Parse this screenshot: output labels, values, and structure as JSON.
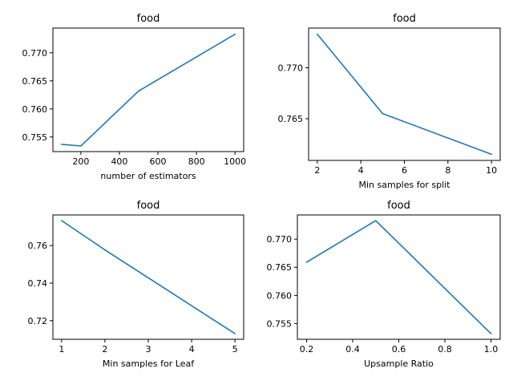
{
  "chart_data": [
    {
      "type": "line",
      "title": "food",
      "xlabel": "number of estimators",
      "ylabel": "",
      "x": [
        100,
        200,
        500,
        1000
      ],
      "series": [
        {
          "values": [
            0.7537,
            0.7534,
            0.7632,
            0.7733
          ]
        }
      ],
      "xlim": [
        55,
        1045
      ],
      "ylim": [
        0.7524,
        0.7744
      ],
      "xticks": [
        200,
        400,
        600,
        800,
        1000
      ],
      "xtick_labels": [
        "200",
        "400",
        "600",
        "800",
        "1000"
      ],
      "yticks": [
        0.755,
        0.76,
        0.765,
        0.77
      ],
      "ytick_labels": [
        "0.755",
        "0.760",
        "0.765",
        "0.770"
      ],
      "grid": false,
      "color": "#1f77b4"
    },
    {
      "type": "line",
      "title": "food",
      "xlabel": "Min samples for split",
      "ylabel": "",
      "x": [
        2,
        5,
        10
      ],
      "series": [
        {
          "values": [
            0.7733,
            0.7655,
            0.7615
          ]
        }
      ],
      "xlim": [
        1.6,
        10.4
      ],
      "ylim": [
        0.7609,
        0.7739
      ],
      "xticks": [
        2,
        4,
        6,
        8,
        10
      ],
      "xtick_labels": [
        "2",
        "4",
        "6",
        "8",
        "10"
      ],
      "yticks": [
        0.765,
        0.77
      ],
      "ytick_labels": [
        "0.765",
        "0.770"
      ],
      "grid": false,
      "color": "#1f77b4"
    },
    {
      "type": "line",
      "title": "food",
      "xlabel": "Min samples for Leaf",
      "ylabel": "",
      "x": [
        1,
        2,
        5
      ],
      "series": [
        {
          "values": [
            0.7733,
            0.7577,
            0.7131
          ]
        }
      ],
      "xlim": [
        0.8,
        5.2
      ],
      "ylim": [
        0.7101,
        0.7763
      ],
      "xticks": [
        1,
        2,
        3,
        4,
        5
      ],
      "xtick_labels": [
        "1",
        "2",
        "3",
        "4",
        "5"
      ],
      "yticks": [
        0.72,
        0.74,
        0.76
      ],
      "ytick_labels": [
        "0.72",
        "0.74",
        "0.76"
      ],
      "grid": false,
      "color": "#1f77b4"
    },
    {
      "type": "line",
      "title": "food",
      "xlabel": "Upsample Ratio",
      "ylabel": "",
      "x": [
        0.2,
        0.5,
        1.0
      ],
      "series": [
        {
          "values": [
            0.7659,
            0.7733,
            0.7532
          ]
        }
      ],
      "xlim": [
        0.16,
        1.04
      ],
      "ylim": [
        0.7522,
        0.7743
      ],
      "xticks": [
        0.2,
        0.4,
        0.6,
        0.8,
        1.0
      ],
      "xtick_labels": [
        "0.2",
        "0.4",
        "0.6",
        "0.8",
        "1.0"
      ],
      "yticks": [
        0.755,
        0.76,
        0.765,
        0.77
      ],
      "ytick_labels": [
        "0.755",
        "0.760",
        "0.765",
        "0.770"
      ],
      "grid": false,
      "color": "#1f77b4"
    }
  ]
}
